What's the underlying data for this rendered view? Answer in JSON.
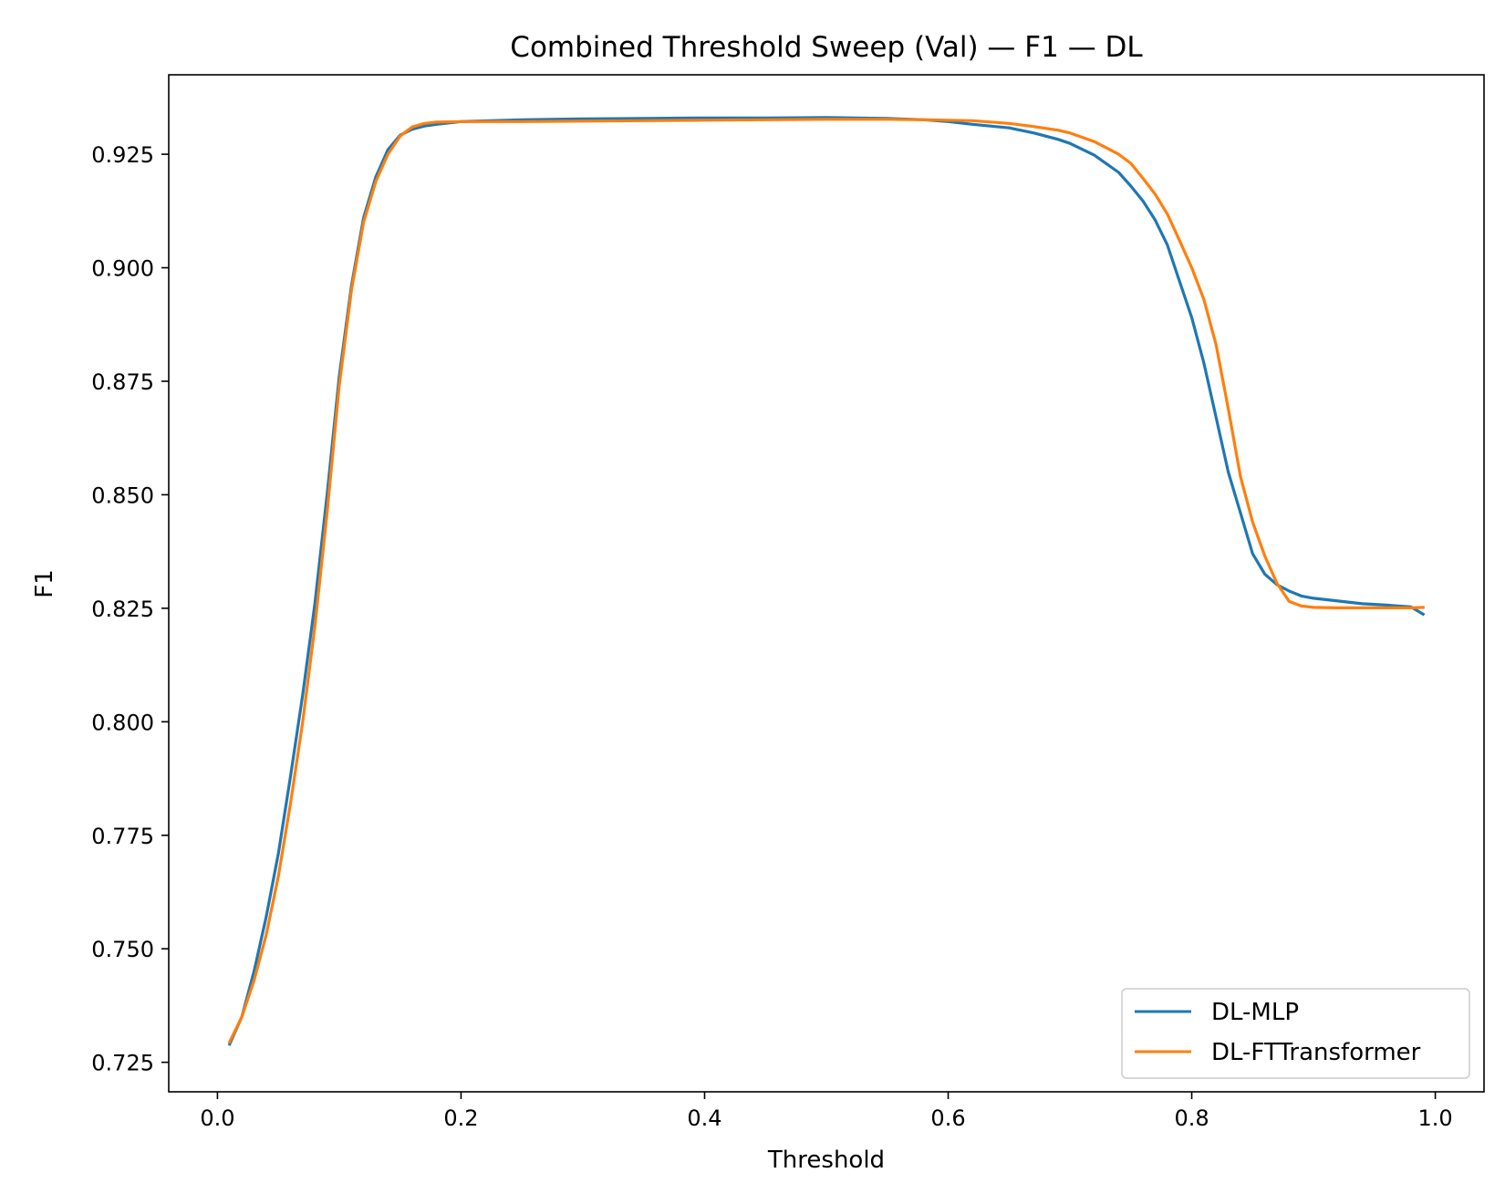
{
  "chart_data": {
    "type": "line",
    "title": "Combined Threshold Sweep (Val) — F1 — DL",
    "xlabel": "Threshold",
    "ylabel": "F1",
    "xlim": [
      -0.04,
      1.04
    ],
    "ylim": [
      0.7185,
      0.9425
    ],
    "xticks": [
      "0.0",
      "0.2",
      "0.4",
      "0.6",
      "0.8",
      "1.0"
    ],
    "yticks": [
      "0.725",
      "0.750",
      "0.775",
      "0.800",
      "0.825",
      "0.850",
      "0.875",
      "0.900",
      "0.925"
    ],
    "grid": false,
    "legend_position": "lower-right",
    "series": [
      {
        "name": "DL-MLP",
        "color": "#1f77b4",
        "x": [
          0.01,
          0.02,
          0.03,
          0.04,
          0.05,
          0.06,
          0.07,
          0.08,
          0.09,
          0.1,
          0.11,
          0.12,
          0.13,
          0.14,
          0.15,
          0.16,
          0.17,
          0.18,
          0.2,
          0.25,
          0.3,
          0.35,
          0.4,
          0.45,
          0.5,
          0.55,
          0.58,
          0.6,
          0.62,
          0.65,
          0.67,
          0.69,
          0.7,
          0.72,
          0.74,
          0.75,
          0.76,
          0.77,
          0.78,
          0.79,
          0.8,
          0.81,
          0.82,
          0.83,
          0.84,
          0.85,
          0.86,
          0.87,
          0.88,
          0.89,
          0.9,
          0.92,
          0.94,
          0.96,
          0.98,
          0.99
        ],
        "y": [
          0.729,
          0.735,
          0.745,
          0.757,
          0.771,
          0.788,
          0.806,
          0.826,
          0.85,
          0.876,
          0.896,
          0.911,
          0.92,
          0.926,
          0.9292,
          0.9305,
          0.9312,
          0.9316,
          0.9322,
          0.9326,
          0.9328,
          0.9329,
          0.933,
          0.933,
          0.9331,
          0.9329,
          0.9326,
          0.9322,
          0.9316,
          0.9308,
          0.9297,
          0.9283,
          0.9274,
          0.9248,
          0.921,
          0.918,
          0.9147,
          0.9105,
          0.905,
          0.897,
          0.889,
          0.879,
          0.867,
          0.855,
          0.846,
          0.837,
          0.8325,
          0.8302,
          0.8288,
          0.8277,
          0.8272,
          0.8266,
          0.826,
          0.8257,
          0.8253,
          0.8237
        ]
      },
      {
        "name": "DL-FTTransformer",
        "color": "#ff7f0e",
        "x": [
          0.01,
          0.02,
          0.03,
          0.04,
          0.05,
          0.06,
          0.07,
          0.08,
          0.09,
          0.1,
          0.11,
          0.12,
          0.13,
          0.14,
          0.15,
          0.16,
          0.17,
          0.18,
          0.2,
          0.25,
          0.3,
          0.35,
          0.4,
          0.45,
          0.5,
          0.55,
          0.58,
          0.6,
          0.62,
          0.65,
          0.67,
          0.69,
          0.7,
          0.72,
          0.74,
          0.75,
          0.76,
          0.77,
          0.78,
          0.79,
          0.8,
          0.81,
          0.82,
          0.83,
          0.84,
          0.85,
          0.86,
          0.87,
          0.88,
          0.89,
          0.9,
          0.92,
          0.94,
          0.96,
          0.98,
          0.99
        ],
        "y": [
          0.7295,
          0.735,
          0.743,
          0.753,
          0.766,
          0.782,
          0.8,
          0.821,
          0.846,
          0.874,
          0.895,
          0.91,
          0.919,
          0.925,
          0.929,
          0.931,
          0.9318,
          0.9321,
          0.9322,
          0.9322,
          0.9323,
          0.9324,
          0.9325,
          0.9326,
          0.9327,
          0.9327,
          0.9326,
          0.9325,
          0.9324,
          0.9318,
          0.9311,
          0.9303,
          0.9297,
          0.9278,
          0.925,
          0.923,
          0.9197,
          0.9162,
          0.9118,
          0.906,
          0.9,
          0.893,
          0.883,
          0.869,
          0.854,
          0.844,
          0.8365,
          0.8305,
          0.8265,
          0.8255,
          0.8252,
          0.8251,
          0.8251,
          0.8251,
          0.8251,
          0.8252
        ]
      }
    ]
  }
}
